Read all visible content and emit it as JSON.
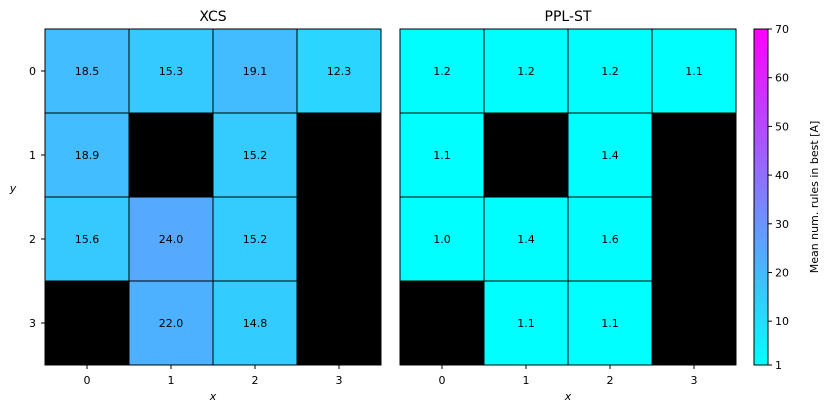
{
  "chart_data": {
    "type": "heatmap",
    "colormap": "cool",
    "masked_color": "#000000",
    "colorbar": {
      "label": "Mean num. rules in best [A]",
      "range": [
        1,
        70
      ],
      "ticks": [
        1,
        10,
        20,
        30,
        40,
        50,
        60,
        70
      ]
    },
    "panels": [
      {
        "title": "XCS",
        "xlabel": "x",
        "ylabel": "y",
        "x_ticks": [
          "0",
          "1",
          "2",
          "3"
        ],
        "y_ticks": [
          "0",
          "1",
          "2",
          "3"
        ],
        "values": [
          [
            18.5,
            15.3,
            19.1,
            12.3
          ],
          [
            18.9,
            null,
            15.2,
            null
          ],
          [
            15.6,
            24.0,
            15.2,
            null
          ],
          [
            null,
            22.0,
            14.8,
            null
          ]
        ]
      },
      {
        "title": "PPL-ST",
        "xlabel": "x",
        "ylabel": "",
        "x_ticks": [
          "0",
          "1",
          "2",
          "3"
        ],
        "y_ticks": [],
        "values": [
          [
            1.2,
            1.2,
            1.2,
            1.1
          ],
          [
            1.1,
            null,
            1.4,
            null
          ],
          [
            1.0,
            1.4,
            1.6,
            null
          ],
          [
            null,
            1.1,
            1.1,
            null
          ]
        ]
      }
    ]
  }
}
